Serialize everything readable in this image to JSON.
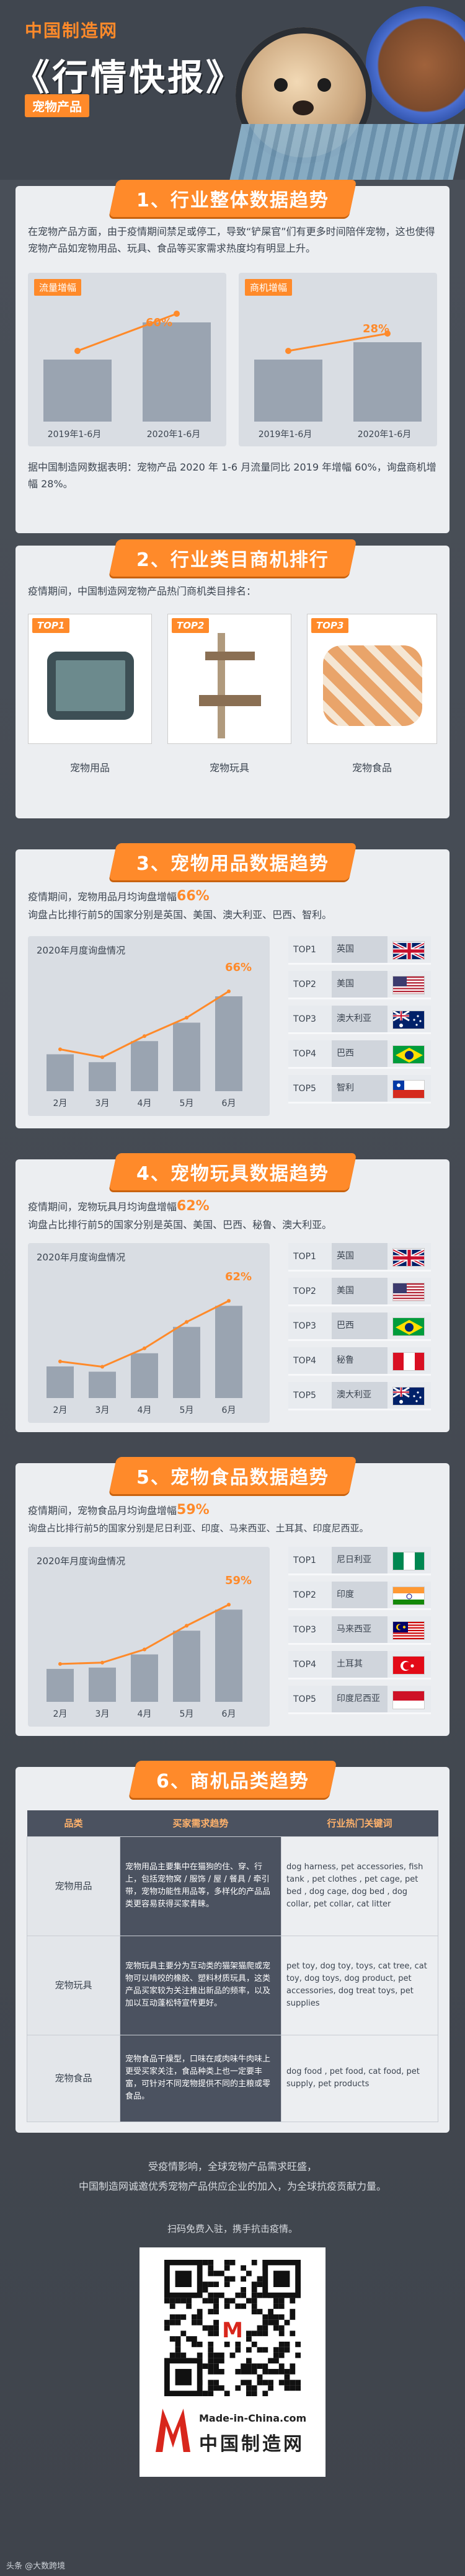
{
  "header": {
    "brand": "中国制造网",
    "title": "《行情快报》",
    "badge": "宠物产品"
  },
  "s1": {
    "title": "1、行业整体数据趋势",
    "intro": "在宠物产品方面，由于疫情期间禁足或停工，导致“铲屎官”们有更多时间陪伴宠物，这也使得宠物产品如宠物用品、玩具、食品等买家需求热度均有明显上升。",
    "traffic": {
      "tag": "流量增幅",
      "pct": "60%",
      "labels": [
        "2019年1-6月",
        "2020年1-6月"
      ],
      "values": [
        100,
        160
      ]
    },
    "merchant": {
      "tag": "商机增幅",
      "pct": "28%",
      "labels": [
        "2019年1-6月",
        "2020年1-6月"
      ],
      "values": [
        100,
        128
      ]
    },
    "summary": "据中国制造网数据表明：宠物产品 2020 年 1-6 月流量同比 2019 年增幅 60%，询盘商机增幅 28%。"
  },
  "s2": {
    "title": "2、行业类目商机排行",
    "intro": "疫情期间，中国制造网宠物产品热门商机类目排名：",
    "items": [
      {
        "rank": "TOP1",
        "name": "宠物用品"
      },
      {
        "rank": "TOP2",
        "name": "宠物玩具"
      },
      {
        "rank": "TOP3",
        "name": "宠物食品"
      }
    ]
  },
  "s3": {
    "title": "3、宠物用品数据趋势",
    "line1_pre": "疫情期间，宠物用品月均询盘增幅",
    "line1_hl": "66%",
    "line2": "询盘占比排行前5的国家分别是英国、美国、澳大利亚、巴西、智利。",
    "chart_title": "2020年月度询盘情况",
    "pct": "66%",
    "top": [
      {
        "rank": "TOP1",
        "country": "英国",
        "flag": "uk"
      },
      {
        "rank": "TOP2",
        "country": "美国",
        "flag": "us"
      },
      {
        "rank": "TOP3",
        "country": "澳大利亚",
        "flag": "au"
      },
      {
        "rank": "TOP4",
        "country": "巴西",
        "flag": "br"
      },
      {
        "rank": "TOP5",
        "country": "智利",
        "flag": "cl"
      }
    ]
  },
  "s4": {
    "title": "4、宠物玩具数据趋势",
    "line1_pre": "疫情期间，宠物玩具月均询盘增幅",
    "line1_hl": "62%",
    "line2": "询盘占比排行前5的国家分别是英国、美国、巴西、秘鲁、澳大利亚。",
    "chart_title": "2020年月度询盘情况",
    "pct": "62%",
    "top": [
      {
        "rank": "TOP1",
        "country": "英国",
        "flag": "uk"
      },
      {
        "rank": "TOP2",
        "country": "美国",
        "flag": "us"
      },
      {
        "rank": "TOP3",
        "country": "巴西",
        "flag": "br"
      },
      {
        "rank": "TOP4",
        "country": "秘鲁",
        "flag": "pe"
      },
      {
        "rank": "TOP5",
        "country": "澳大利亚",
        "flag": "au"
      }
    ]
  },
  "s5": {
    "title": "5、宠物食品数据趋势",
    "line1_pre": "疫情期间，宠物食品月均询盘增幅",
    "line1_hl": "59%",
    "line2": "询盘占比排行前5的国家分别是尼日利亚、印度、马来西亚、土耳其、印度尼西亚。",
    "chart_title": "2020年月度询盘情况",
    "pct": "59%",
    "top": [
      {
        "rank": "TOP1",
        "country": "尼日利亚",
        "flag": "ng"
      },
      {
        "rank": "TOP2",
        "country": "印度",
        "flag": "in"
      },
      {
        "rank": "TOP3",
        "country": "马来西亚",
        "flag": "my"
      },
      {
        "rank": "TOP4",
        "country": "土耳其",
        "flag": "tr"
      },
      {
        "rank": "TOP5",
        "country": "印度尼西亚",
        "flag": "id"
      }
    ]
  },
  "chart_data": [
    {
      "type": "bar",
      "title": "2020年月度询盘情况",
      "categories": [
        "2月",
        "3月",
        "4月",
        "5月",
        "6月"
      ],
      "values": [
        28,
        22,
        38,
        52,
        72
      ],
      "annotation": "66%"
    },
    {
      "type": "bar",
      "title": "2020年月度询盘情况",
      "categories": [
        "2月",
        "3月",
        "4月",
        "5月",
        "6月"
      ],
      "values": [
        24,
        20,
        34,
        54,
        70
      ],
      "annotation": "62%"
    },
    {
      "type": "bar",
      "title": "2020年月度询盘情况",
      "categories": [
        "2月",
        "3月",
        "4月",
        "5月",
        "6月"
      ],
      "values": [
        25,
        26,
        36,
        54,
        70
      ],
      "annotation": "59%"
    }
  ],
  "s6": {
    "title": "6、商机品类趋势",
    "headers": [
      "品类",
      "买家需求趋势",
      "行业热门关键词"
    ],
    "rows": [
      {
        "cat": "宠物用品",
        "desc": "宠物用品主要集中在猫狗的住、穿、行上，包括宠物窝 / 服饰 / 屋 / 餐具 / 牵引带，宠物功能性用品等，多样化的产品品类更容易获得买家青睐。",
        "kw": "dog harness, pet accessories, fish tank , pet clothes , pet cage, pet bed , dog cage, dog bed , dog collar, pet collar, cat litter"
      },
      {
        "cat": "宠物玩具",
        "desc": "宠物玩具主要分为互动类的猫架猫爬或宠物可以啃咬的橡胶、塑料材质玩具，这类产品买家较为关注推出新品的频率，以及加以互动蓬松特宣传更好。",
        "kw": "pet toy, dog toy, toys, cat tree, cat toy, dog toys, dog product, pet accessories, dog treat toys, pet supplies"
      },
      {
        "cat": "宠物食品",
        "desc": "宠物食品干燥型，口味在咸肉味牛肉味上更受买家关注，食品种类上也一定要丰富，可针对不同宠物提供不同的主粮或零食品。",
        "kw": "dog food , pet food, cat food, pet supply, pet products"
      }
    ]
  },
  "footer": {
    "line1": "受疫情影响，全球宠物产品需求旺盛，",
    "line2": "中国制造网诚邀优秀宠物产品供应企业的加入，为全球抗疫贡献力量。",
    "scan": "扫码免费入驻，携手抗击疫情。",
    "logo_en": "Made-in-China.com",
    "logo_cn": "中国制造网",
    "watermark": "头条 @大数跨境"
  },
  "colors": {
    "accent": "#ff8a2a",
    "dark": "#4b5260",
    "panel": "#eceef1"
  }
}
